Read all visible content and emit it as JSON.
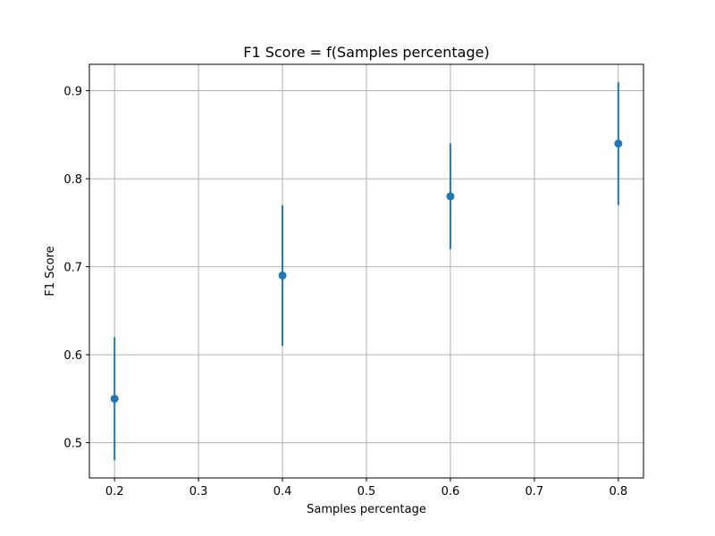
{
  "chart_data": {
    "type": "scatter",
    "title": "F1 Score = f(Samples percentage)",
    "xlabel": "Samples percentage",
    "ylabel": "F1 Score",
    "xlim": [
      0.17,
      0.83
    ],
    "ylim": [
      0.46,
      0.93
    ],
    "xticks": [
      0.2,
      0.3,
      0.4,
      0.5,
      0.6,
      0.7,
      0.8
    ],
    "xtick_labels": [
      "0.2",
      "0.3",
      "0.4",
      "0.5",
      "0.6",
      "0.7",
      "0.8"
    ],
    "yticks": [
      0.5,
      0.6,
      0.7,
      0.8,
      0.9
    ],
    "ytick_labels": [
      "0.5",
      "0.6",
      "0.7",
      "0.8",
      "0.9"
    ],
    "grid": true,
    "color": "#1f77b4",
    "series": [
      {
        "x": [
          0.2,
          0.4,
          0.6,
          0.8
        ],
        "y": [
          0.55,
          0.69,
          0.78,
          0.84
        ],
        "yerr_low": [
          0.48,
          0.61,
          0.72,
          0.77
        ],
        "yerr_high": [
          0.62,
          0.77,
          0.84,
          0.91
        ]
      }
    ]
  }
}
